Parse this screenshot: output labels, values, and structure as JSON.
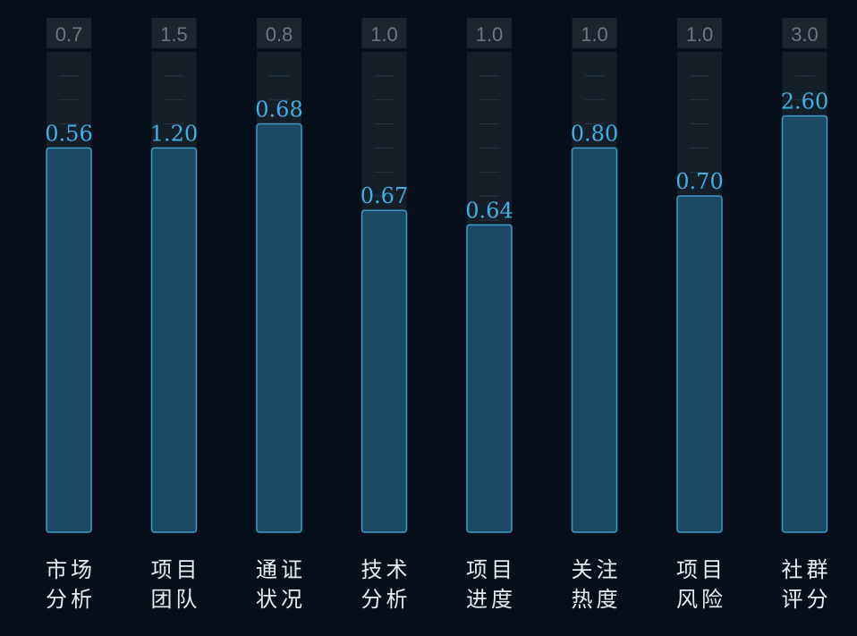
{
  "chart_data": {
    "type": "bar",
    "categories": [
      [
        "市场",
        "分析"
      ],
      [
        "项目",
        "团队"
      ],
      [
        "通证",
        "状况"
      ],
      [
        "技术",
        "分析"
      ],
      [
        "项目",
        "进度"
      ],
      [
        "关注",
        "热度"
      ],
      [
        "项目",
        "风险"
      ],
      [
        "社群",
        "评分"
      ]
    ],
    "values": [
      0.56,
      1.2,
      0.68,
      0.67,
      0.64,
      0.8,
      0.7,
      2.6
    ],
    "value_labels": [
      "0.56",
      "1.20",
      "0.68",
      "0.67",
      "0.64",
      "0.80",
      "0.70",
      "2.60"
    ],
    "max_values": [
      0.7,
      1.5,
      0.8,
      1.0,
      1.0,
      1.0,
      1.0,
      3.0
    ],
    "max_labels": [
      "0.7",
      "1.5",
      "0.8",
      "1.0",
      "1.0",
      "1.0",
      "1.0",
      "3.0"
    ],
    "title": "",
    "xlabel": "",
    "ylabel": "",
    "grid": false,
    "colors": {
      "background": "#07101a",
      "track": "#151f28",
      "max_box": "#1c252e",
      "bar_fill": "#1c4a63",
      "bar_stroke": "#3f9cc6",
      "value_text": "#3fb0e6",
      "max_text": "#6c7682",
      "category_text": "#e6ebf0"
    }
  }
}
